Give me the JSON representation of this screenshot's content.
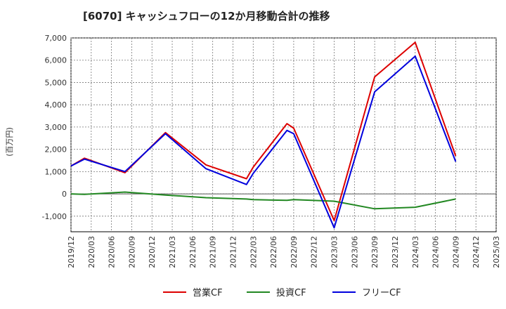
{
  "chart_data": {
    "type": "line",
    "title": "[6070]  キャッシュフローの12か月移動合計の推移",
    "ylabel": "(百万円)",
    "xlabel": "",
    "ylim": [
      -1700,
      7000
    ],
    "yticks": [
      -1000,
      0,
      1000,
      2000,
      3000,
      4000,
      5000,
      6000,
      7000
    ],
    "ytick_labels": [
      "-1,000",
      "0",
      "1,000",
      "2,000",
      "3,000",
      "4,000",
      "5,000",
      "6,000",
      "7,000"
    ],
    "xticks": [
      "2019/12",
      "2020/03",
      "2020/06",
      "2020/09",
      "2020/12",
      "2021/03",
      "2021/06",
      "2021/09",
      "2021/12",
      "2022/03",
      "2022/06",
      "2022/09",
      "2022/12",
      "2023/03",
      "2023/06",
      "2023/09",
      "2023/12",
      "2024/03",
      "2024/06",
      "2024/09",
      "2024/12",
      "2025/03"
    ],
    "grid": true,
    "legend_position": "bottom",
    "series": [
      {
        "name": "営業CF",
        "color": "#dd0000",
        "x": [
          "2019/12",
          "2020/02",
          "2020/08",
          "2021/02",
          "2021/08",
          "2022/02",
          "2022/03",
          "2022/08",
          "2022/09",
          "2023/03",
          "2023/09",
          "2024/03",
          "2024/09"
        ],
        "values": [
          1250,
          1600,
          950,
          2750,
          1300,
          680,
          1200,
          3150,
          2950,
          -1200,
          5250,
          6800,
          1700
        ]
      },
      {
        "name": "投資CF",
        "color": "#228822",
        "x": [
          "2019/12",
          "2020/02",
          "2020/08",
          "2021/02",
          "2021/08",
          "2022/02",
          "2022/03",
          "2022/08",
          "2022/09",
          "2023/03",
          "2023/09",
          "2024/03",
          "2024/09"
        ],
        "values": [
          0,
          -20,
          80,
          -50,
          -170,
          -230,
          -260,
          -290,
          -260,
          -330,
          -670,
          -600,
          -230
        ]
      },
      {
        "name": "フリーCF",
        "color": "#0000dd",
        "x": [
          "2019/12",
          "2020/02",
          "2020/08",
          "2021/02",
          "2021/08",
          "2022/02",
          "2022/03",
          "2022/08",
          "2022/09",
          "2023/03",
          "2023/09",
          "2024/03",
          "2024/09"
        ],
        "values": [
          1250,
          1560,
          1000,
          2700,
          1130,
          420,
          920,
          2850,
          2700,
          -1520,
          4580,
          6180,
          1450
        ]
      }
    ]
  }
}
